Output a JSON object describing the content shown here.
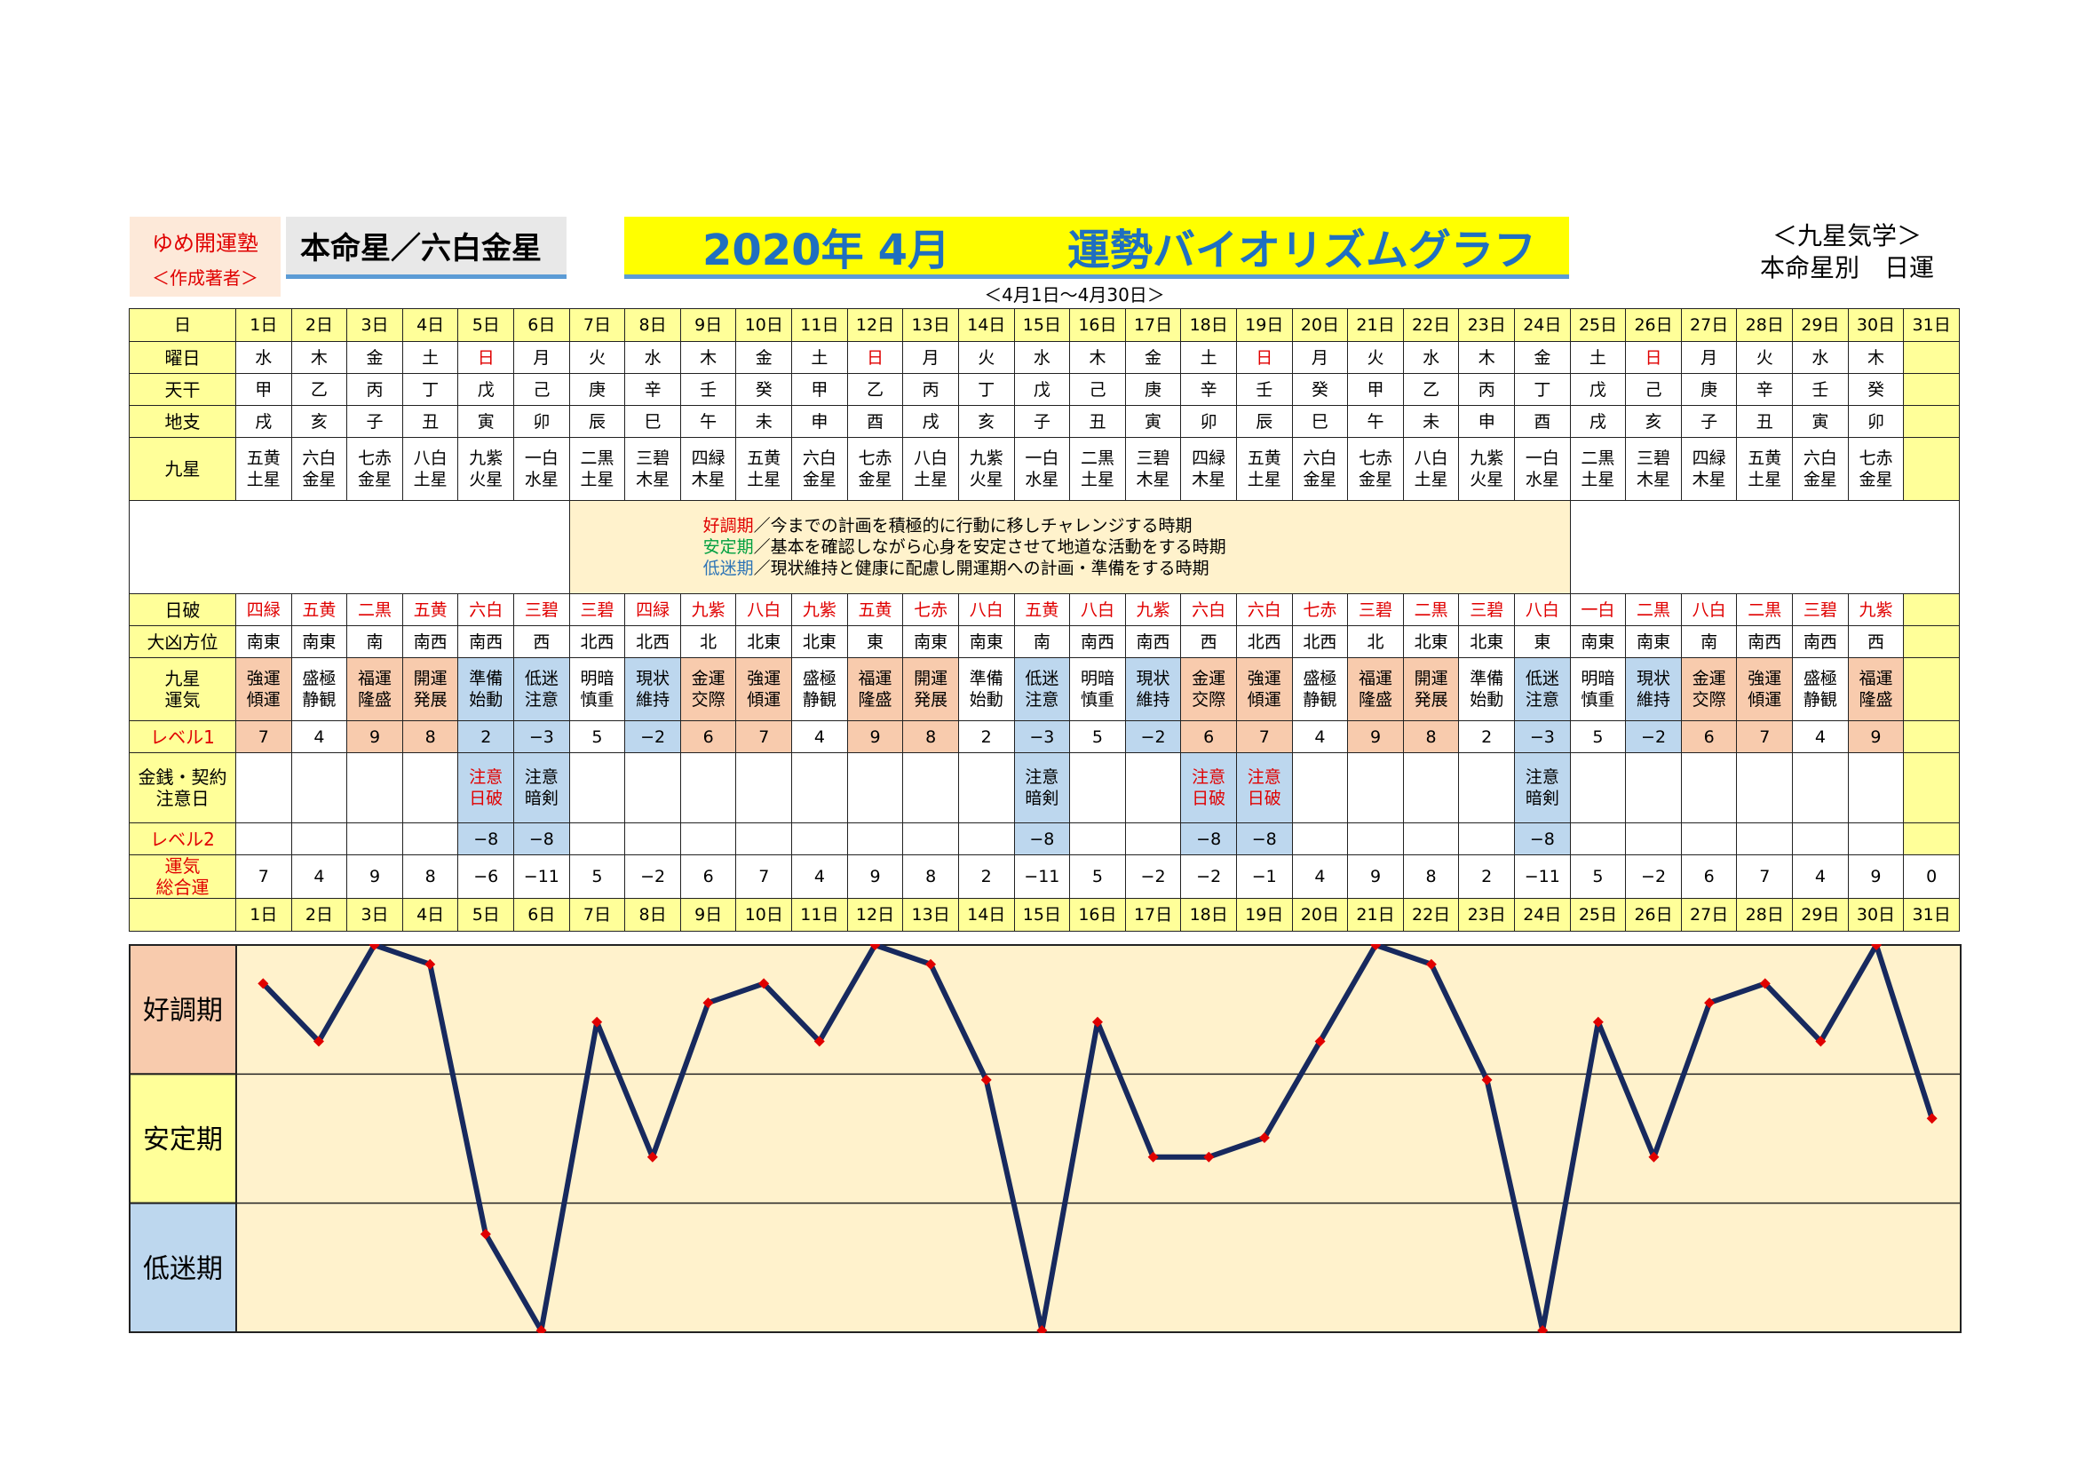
{
  "header": {
    "school_name": "ゆめ開運塾",
    "school_sub": "＜作成著者＞",
    "honmei": "本命星／六白金星",
    "title_year": "2020年",
    "title_month": "4月",
    "title_name": "運勢バイオリズムグラフ",
    "date_range": "＜4月1日～4月30日＞",
    "top_right_1": "＜九星気学＞",
    "top_right_2": "本命星別　日運"
  },
  "row_labels": {
    "day": "日",
    "weekday": "曜日",
    "tenkan": "天干",
    "chishi": "地支",
    "kyusei": "九星",
    "nippa": "日破",
    "direction": "大凶方位",
    "unki": [
      "九星",
      "運気"
    ],
    "level1": "レベル1",
    "money": [
      "金銭・契約",
      "注意日"
    ],
    "level2": "レベル2",
    "total": [
      "運気",
      "総合運"
    ]
  },
  "description": {
    "lines": [
      {
        "kw": "好調期",
        "color": "#e00000",
        "text": "／今までの計画を積極的に行動に移しチャレンジする時期"
      },
      {
        "kw": "安定期",
        "color": "#00a040",
        "text": "／基本を確認しながら心身を安定させて地道な活動をする時期"
      },
      {
        "kw": "低迷期",
        "color": "#2e75b6",
        "text": "／現状維持と健康に配慮し開運期への計画・準備をする時期"
      }
    ]
  },
  "days": [
    "1日",
    "2日",
    "3日",
    "4日",
    "5日",
    "6日",
    "7日",
    "8日",
    "9日",
    "10日",
    "11日",
    "12日",
    "13日",
    "14日",
    "15日",
    "16日",
    "17日",
    "18日",
    "19日",
    "20日",
    "21日",
    "22日",
    "23日",
    "24日",
    "25日",
    "26日",
    "27日",
    "28日",
    "29日",
    "30日",
    "31日"
  ],
  "weekday": [
    "水",
    "木",
    "金",
    "土",
    "日",
    "月",
    "火",
    "水",
    "木",
    "金",
    "土",
    "日",
    "月",
    "火",
    "水",
    "木",
    "金",
    "土",
    "日",
    "月",
    "火",
    "水",
    "木",
    "金",
    "土",
    "日",
    "月",
    "火",
    "水",
    "木",
    ""
  ],
  "tenkan": [
    "甲",
    "乙",
    "丙",
    "丁",
    "戊",
    "己",
    "庚",
    "辛",
    "壬",
    "癸",
    "甲",
    "乙",
    "丙",
    "丁",
    "戊",
    "己",
    "庚",
    "辛",
    "壬",
    "癸",
    "甲",
    "乙",
    "丙",
    "丁",
    "戊",
    "己",
    "庚",
    "辛",
    "壬",
    "癸",
    ""
  ],
  "chishi": [
    "戌",
    "亥",
    "子",
    "丑",
    "寅",
    "卯",
    "辰",
    "巳",
    "午",
    "未",
    "申",
    "酉",
    "戌",
    "亥",
    "子",
    "丑",
    "寅",
    "卯",
    "辰",
    "巳",
    "午",
    "未",
    "申",
    "酉",
    "戌",
    "亥",
    "子",
    "丑",
    "寅",
    "卯",
    ""
  ],
  "kyusei": [
    [
      "五黄",
      "土星"
    ],
    [
      "六白",
      "金星"
    ],
    [
      "七赤",
      "金星"
    ],
    [
      "八白",
      "土星"
    ],
    [
      "九紫",
      "火星"
    ],
    [
      "一白",
      "水星"
    ],
    [
      "二黒",
      "土星"
    ],
    [
      "三碧",
      "木星"
    ],
    [
      "四緑",
      "木星"
    ],
    [
      "五黄",
      "土星"
    ],
    [
      "六白",
      "金星"
    ],
    [
      "七赤",
      "金星"
    ],
    [
      "八白",
      "土星"
    ],
    [
      "九紫",
      "火星"
    ],
    [
      "一白",
      "水星"
    ],
    [
      "二黒",
      "土星"
    ],
    [
      "三碧",
      "木星"
    ],
    [
      "四緑",
      "木星"
    ],
    [
      "五黄",
      "土星"
    ],
    [
      "六白",
      "金星"
    ],
    [
      "七赤",
      "金星"
    ],
    [
      "八白",
      "土星"
    ],
    [
      "九紫",
      "火星"
    ],
    [
      "一白",
      "水星"
    ],
    [
      "二黒",
      "土星"
    ],
    [
      "三碧",
      "木星"
    ],
    [
      "四緑",
      "木星"
    ],
    [
      "五黄",
      "土星"
    ],
    [
      "六白",
      "金星"
    ],
    [
      "七赤",
      "金星"
    ],
    [
      "",
      ""
    ]
  ],
  "nippa": [
    "四緑",
    "五黄",
    "二黒",
    "五黄",
    "六白",
    "三碧",
    "三碧",
    "四緑",
    "九紫",
    "八白",
    "九紫",
    "五黄",
    "七赤",
    "八白",
    "五黄",
    "八白",
    "九紫",
    "六白",
    "六白",
    "七赤",
    "三碧",
    "二黒",
    "三碧",
    "八白",
    "一白",
    "二黒",
    "八白",
    "二黒",
    "三碧",
    "九紫",
    ""
  ],
  "direction": [
    "南東",
    "南東",
    "南",
    "南西",
    "南西",
    "西",
    "北西",
    "北西",
    "北",
    "北東",
    "北東",
    "東",
    "南東",
    "南東",
    "南",
    "南西",
    "南西",
    "西",
    "北西",
    "北西",
    "北",
    "北東",
    "北東",
    "東",
    "南東",
    "南東",
    "南",
    "南西",
    "南西",
    "西",
    ""
  ],
  "unki": [
    [
      "強運",
      "傾運"
    ],
    [
      "盛極",
      "静観"
    ],
    [
      "福運",
      "隆盛"
    ],
    [
      "開運",
      "発展"
    ],
    [
      "準備",
      "始動"
    ],
    [
      "低迷",
      "注意"
    ],
    [
      "明暗",
      "慎重"
    ],
    [
      "現状",
      "維持"
    ],
    [
      "金運",
      "交際"
    ],
    [
      "強運",
      "傾運"
    ],
    [
      "盛極",
      "静観"
    ],
    [
      "福運",
      "隆盛"
    ],
    [
      "開運",
      "発展"
    ],
    [
      "準備",
      "始動"
    ],
    [
      "低迷",
      "注意"
    ],
    [
      "明暗",
      "慎重"
    ],
    [
      "現状",
      "維持"
    ],
    [
      "金運",
      "交際"
    ],
    [
      "強運",
      "傾運"
    ],
    [
      "盛極",
      "静観"
    ],
    [
      "福運",
      "隆盛"
    ],
    [
      "開運",
      "発展"
    ],
    [
      "準備",
      "始動"
    ],
    [
      "低迷",
      "注意"
    ],
    [
      "明暗",
      "慎重"
    ],
    [
      "現状",
      "維持"
    ],
    [
      "金運",
      "交際"
    ],
    [
      "強運",
      "傾運"
    ],
    [
      "盛極",
      "静観"
    ],
    [
      "福運",
      "隆盛"
    ],
    [
      "",
      ""
    ]
  ],
  "level1": [
    "7",
    "4",
    "9",
    "8",
    "2",
    "−3",
    "5",
    "−2",
    "6",
    "7",
    "4",
    "9",
    "8",
    "2",
    "−3",
    "5",
    "−2",
    "6",
    "7",
    "4",
    "9",
    "8",
    "2",
    "−3",
    "5",
    "−2",
    "6",
    "7",
    "4",
    "9",
    ""
  ],
  "money": [
    [
      "",
      ""
    ],
    [
      "",
      ""
    ],
    [
      "",
      ""
    ],
    [
      "",
      ""
    ],
    [
      "注意",
      "日破"
    ],
    [
      "注意",
      "暗剣"
    ],
    [
      "",
      ""
    ],
    [
      "",
      ""
    ],
    [
      "",
      ""
    ],
    [
      "",
      ""
    ],
    [
      "",
      ""
    ],
    [
      "",
      ""
    ],
    [
      "",
      ""
    ],
    [
      "",
      ""
    ],
    [
      "注意",
      "暗剣"
    ],
    [
      "",
      ""
    ],
    [
      "",
      ""
    ],
    [
      "注意",
      "日破"
    ],
    [
      "注意",
      "日破"
    ],
    [
      "",
      ""
    ],
    [
      "",
      ""
    ],
    [
      "",
      ""
    ],
    [
      "",
      ""
    ],
    [
      "注意",
      "暗剣"
    ],
    [
      "",
      ""
    ],
    [
      "",
      ""
    ],
    [
      "",
      ""
    ],
    [
      "",
      ""
    ],
    [
      "",
      ""
    ],
    [
      "",
      ""
    ],
    [
      "",
      ""
    ]
  ],
  "level2": [
    "",
    "",
    "",
    "",
    "−8",
    "−8",
    "",
    "",
    "",
    "",
    "",
    "",
    "",
    "",
    "−8",
    "",
    "",
    "−8",
    "−8",
    "",
    "",
    "",
    "",
    "−8",
    "",
    "",
    "",
    "",
    "",
    "",
    ""
  ],
  "total": [
    "7",
    "4",
    "9",
    "8",
    "−6",
    "−11",
    "5",
    "−2",
    "6",
    "7",
    "4",
    "9",
    "8",
    "2",
    "−11",
    "5",
    "−2",
    "−2",
    "−1",
    "4",
    "9",
    "8",
    "2",
    "−11",
    "5",
    "−2",
    "6",
    "7",
    "4",
    "9",
    "0"
  ],
  "colors": {
    "good": "#f8cbad",
    "low": "#bdd7ee",
    "line": "#17295e",
    "marker": "#e00000",
    "plot_bg": "#fff2cc"
  },
  "chart_data": {
    "type": "line",
    "x": [
      "1日",
      "2日",
      "3日",
      "4日",
      "5日",
      "6日",
      "7日",
      "8日",
      "9日",
      "10日",
      "11日",
      "12日",
      "13日",
      "14日",
      "15日",
      "16日",
      "17日",
      "18日",
      "19日",
      "20日",
      "21日",
      "22日",
      "23日",
      "24日",
      "25日",
      "26日",
      "27日",
      "28日",
      "29日",
      "30日",
      "31日"
    ],
    "values": [
      7,
      4,
      9,
      8,
      -6,
      -11,
      5,
      -2,
      6,
      7,
      4,
      9,
      8,
      2,
      -11,
      5,
      -2,
      -2,
      -1,
      4,
      9,
      8,
      2,
      -11,
      5,
      -2,
      6,
      7,
      4,
      9,
      0
    ],
    "ylim": [
      -11,
      9
    ],
    "zones": [
      "好調期",
      "安定期",
      "低迷期"
    ],
    "grid": true
  }
}
